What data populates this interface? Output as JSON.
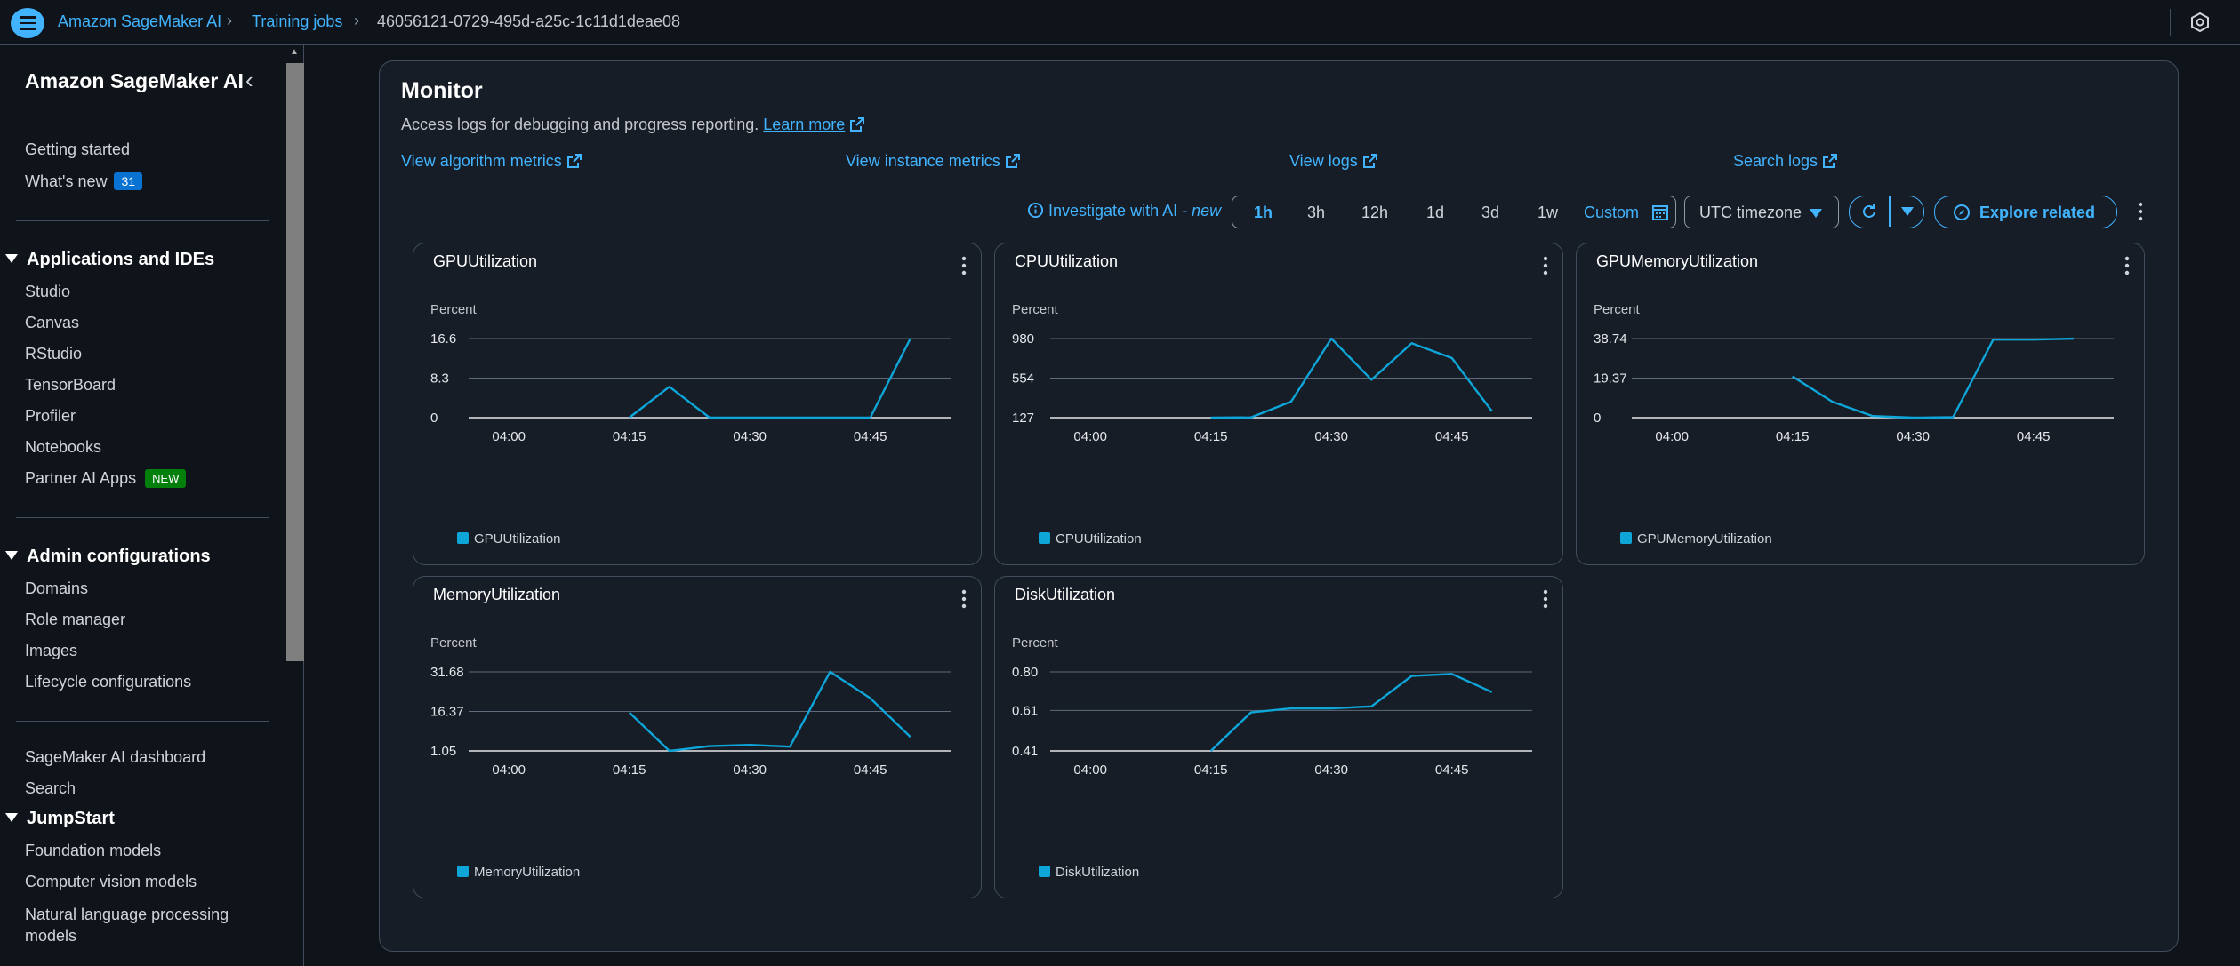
{
  "breadcrumb": {
    "items": [
      "Amazon SageMaker AI",
      "Training jobs"
    ],
    "current": "46056121-0729-495d-a25c-1c11d1deae08"
  },
  "sidebar": {
    "title": "Amazon SageMaker AI",
    "top_items": [
      {
        "label": "Getting started"
      },
      {
        "label": "What's new",
        "badge": "31"
      }
    ],
    "sections": [
      {
        "title": "Applications and IDEs",
        "items": [
          "Studio",
          "Canvas",
          "RStudio",
          "TensorBoard",
          "Profiler",
          "Notebooks",
          "Partner AI Apps"
        ],
        "new_badge": "NEW"
      },
      {
        "title": "Admin configurations",
        "items": [
          "Domains",
          "Role manager",
          "Images",
          "Lifecycle configurations"
        ]
      }
    ],
    "misc_items": [
      "SageMaker AI dashboard",
      "Search"
    ],
    "jumpstart": {
      "title": "JumpStart",
      "items": [
        "Foundation models",
        "Computer vision models",
        "Natural language processing models"
      ]
    }
  },
  "monitor": {
    "title": "Monitor",
    "description": "Access logs for debugging and progress reporting.",
    "learn_more": "Learn more",
    "links": [
      "View algorithm metrics",
      "View instance metrics",
      "View logs",
      "Search logs"
    ],
    "investigate": "Investigate with AI",
    "investigate_new": "- new",
    "ranges": [
      "1h",
      "3h",
      "12h",
      "1d",
      "3d",
      "1w",
      "Custom"
    ],
    "active_range": "1h",
    "timezone": "UTC timezone",
    "explore": "Explore related"
  },
  "colors": {
    "accent": "#42b4ff",
    "series": "#0ea5d9"
  },
  "chart_data": [
    {
      "type": "line",
      "title": "GPUUtilization",
      "ylabel": "Percent",
      "yticks": [
        "16.6",
        "8.3",
        "0"
      ],
      "ylim": [
        0,
        16.6
      ],
      "xticks": [
        "04:00",
        "04:15",
        "04:30",
        "04:45"
      ],
      "xlim": [
        "03:55",
        "04:55"
      ],
      "series": [
        {
          "name": "GPUUtilization",
          "x": [
            "04:15",
            "04:20",
            "04:25",
            "04:30",
            "04:35",
            "04:40",
            "04:45",
            "04:50"
          ],
          "values": [
            0,
            6.5,
            0,
            0,
            0,
            0,
            0,
            16.6
          ]
        }
      ]
    },
    {
      "type": "line",
      "title": "CPUUtilization",
      "ylabel": "Percent",
      "yticks": [
        "980",
        "554",
        "127"
      ],
      "ylim": [
        127,
        980
      ],
      "xticks": [
        "04:00",
        "04:15",
        "04:30",
        "04:45"
      ],
      "xlim": [
        "03:55",
        "04:55"
      ],
      "series": [
        {
          "name": "CPUUtilization",
          "x": [
            "04:15",
            "04:20",
            "04:25",
            "04:30",
            "04:35",
            "04:40",
            "04:45",
            "04:50"
          ],
          "values": [
            127,
            130,
            300,
            980,
            535,
            930,
            770,
            195
          ]
        }
      ]
    },
    {
      "type": "line",
      "title": "GPUMemoryUtilization",
      "ylabel": "Percent",
      "yticks": [
        "38.74",
        "19.37",
        "0"
      ],
      "ylim": [
        0,
        38.74
      ],
      "xticks": [
        "04:00",
        "04:15",
        "04:30",
        "04:45"
      ],
      "xlim": [
        "03:55",
        "04:55"
      ],
      "series": [
        {
          "name": "GPUMemoryUtilization",
          "x": [
            "04:15",
            "04:20",
            "04:25",
            "04:30",
            "04:35",
            "04:40",
            "04:45",
            "04:50"
          ],
          "values": [
            20.2,
            7.7,
            0.8,
            0,
            0.2,
            38.2,
            38.2,
            38.7
          ]
        }
      ]
    },
    {
      "type": "line",
      "title": "MemoryUtilization",
      "ylabel": "Percent",
      "yticks": [
        "31.68",
        "16.37",
        "1.05"
      ],
      "ylim": [
        1.05,
        31.68
      ],
      "xticks": [
        "04:00",
        "04:15",
        "04:30",
        "04:45"
      ],
      "xlim": [
        "03:55",
        "04:55"
      ],
      "series": [
        {
          "name": "MemoryUtilization",
          "x": [
            "04:15",
            "04:20",
            "04:25",
            "04:30",
            "04:35",
            "04:40",
            "04:45",
            "04:50"
          ],
          "values": [
            16.0,
            1.05,
            2.9,
            3.4,
            2.7,
            31.7,
            21.5,
            6.5
          ]
        }
      ]
    },
    {
      "type": "line",
      "title": "DiskUtilization",
      "ylabel": "Percent",
      "yticks": [
        "0.80",
        "0.61",
        "0.41"
      ],
      "ylim": [
        0.41,
        0.8
      ],
      "xticks": [
        "04:00",
        "04:15",
        "04:30",
        "04:45"
      ],
      "xlim": [
        "03:55",
        "04:55"
      ],
      "series": [
        {
          "name": "DiskUtilization",
          "x": [
            "04:15",
            "04:20",
            "04:25",
            "04:30",
            "04:35",
            "04:40",
            "04:45",
            "04:50"
          ],
          "values": [
            0.41,
            0.6,
            0.62,
            0.62,
            0.63,
            0.78,
            0.79,
            0.7
          ]
        }
      ]
    }
  ]
}
